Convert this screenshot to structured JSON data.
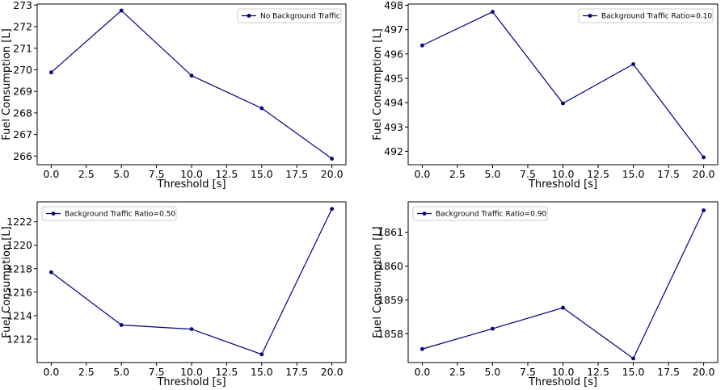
{
  "chart_data": [
    {
      "type": "line",
      "xlabel": "Threshold [s]",
      "ylabel": "Fuel Consumption [L]",
      "x": [
        0.0,
        5.0,
        10.0,
        15.0,
        20.0
      ],
      "xticks": [
        "0.0",
        "2.5",
        "5.0",
        "7.5",
        "10.0",
        "12.5",
        "15.0",
        "17.5",
        "20.0"
      ],
      "yticks": [
        "266",
        "267",
        "268",
        "269",
        "270",
        "271",
        "272",
        "273"
      ],
      "ylim": [
        265.6,
        273.05
      ],
      "legend_position": "upper right",
      "series": [
        {
          "name": "No Background Traffic",
          "values": [
            269.88,
            272.75,
            269.73,
            268.22,
            265.88
          ]
        }
      ]
    },
    {
      "type": "line",
      "xlabel": "Threshold [s]",
      "ylabel": "Fuel Consumption [L]",
      "x": [
        0.0,
        5.0,
        10.0,
        15.0,
        20.0
      ],
      "xticks": [
        "0.0",
        "2.5",
        "5.0",
        "7.5",
        "10.0",
        "12.5",
        "15.0",
        "17.5",
        "20.0"
      ],
      "yticks": [
        "492",
        "493",
        "494",
        "495",
        "496",
        "497",
        "498"
      ],
      "ylim": [
        491.45,
        498.05
      ],
      "legend_position": "upper right",
      "series": [
        {
          "name": "Background Traffic Ratio=0.10",
          "values": [
            496.35,
            497.73,
            493.97,
            495.58,
            491.75
          ]
        }
      ]
    },
    {
      "type": "line",
      "xlabel": "Threshold [s]",
      "ylabel": "Fuel Consumption [L]",
      "x": [
        0.0,
        5.0,
        10.0,
        15.0,
        20.0
      ],
      "xticks": [
        "0.0",
        "2.5",
        "5.0",
        "7.5",
        "10.0",
        "12.5",
        "15.0",
        "17.5",
        "20.0"
      ],
      "yticks": [
        "1212",
        "1214",
        "1216",
        "1218",
        "1220",
        "1222"
      ],
      "ylim": [
        1210.0,
        1223.7
      ],
      "legend_position": "upper left",
      "series": [
        {
          "name": "Background Traffic Ratio=0.50",
          "values": [
            1217.7,
            1213.2,
            1212.85,
            1210.7,
            1223.1
          ]
        }
      ]
    },
    {
      "type": "line",
      "xlabel": "Threshold [s]",
      "ylabel": "Fuel Consumption [L]",
      "x": [
        0.0,
        5.0,
        10.0,
        15.0,
        20.0
      ],
      "xticks": [
        "0.0",
        "2.5",
        "5.0",
        "7.5",
        "10.0",
        "12.5",
        "15.0",
        "17.5",
        "20.0"
      ],
      "yticks": [
        "1858",
        "1859",
        "1860",
        "1861"
      ],
      "ylim": [
        1857.15,
        1861.9
      ],
      "legend_position": "upper left",
      "series": [
        {
          "name": "Background Traffic Ratio=0.90",
          "values": [
            1857.55,
            1858.15,
            1858.77,
            1857.27,
            1861.65
          ]
        }
      ]
    }
  ]
}
